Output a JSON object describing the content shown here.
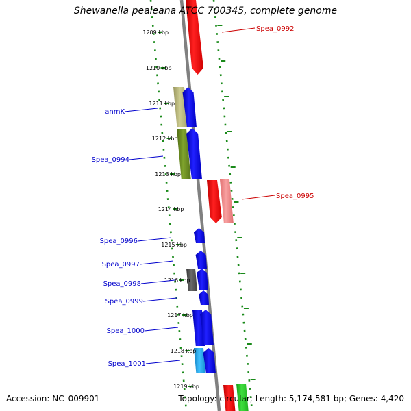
{
  "title": "Shewanella pealeana ATCC 700345, complete genome",
  "accession": "Accession: NC_009901",
  "topology": "Topology: circular; Length: 5,174,581 bp; Genes: 4,420",
  "colors": {
    "backbone": "#808080",
    "dotted_track": "#1a8a1a",
    "red_gene": "#ff0000",
    "red_label": "#cc0000",
    "pink_gene": "#f08080",
    "blue_gene": "#0000ff",
    "blue_label": "#0000cc",
    "khaki_gene": "#b5b37a",
    "olive_gene": "#6b8e23",
    "gray_gene": "#555555",
    "cyan_gene": "#1ea0e0",
    "green_gene": "#22cc22"
  },
  "scale": {
    "ticks": [
      {
        "label": "1209 kbp"
      },
      {
        "label": "1210 kbp"
      },
      {
        "label": "1211 kbp"
      },
      {
        "label": "1212 kbp"
      },
      {
        "label": "1213 kbp"
      },
      {
        "label": "1214 kbp"
      },
      {
        "label": "1215 kbp"
      },
      {
        "label": "1216 kbp"
      },
      {
        "label": "1217 kbp"
      },
      {
        "label": "1218 kbp"
      },
      {
        "label": "1219 kbp"
      }
    ]
  },
  "genes": {
    "right": [
      {
        "name": "Spea_0992",
        "color": "red_gene"
      },
      {
        "name": "Spea_0995",
        "color": "red_gene"
      }
    ],
    "left": [
      {
        "name": "anmK",
        "color": "khaki_gene"
      },
      {
        "name": "Spea_0994",
        "color": "olive_gene"
      },
      {
        "name": "Spea_0996",
        "color": "blue_gene"
      },
      {
        "name": "Spea_0997",
        "color": "blue_gene"
      },
      {
        "name": "Spea_0998",
        "color": "gray_gene"
      },
      {
        "name": "Spea_0999",
        "color": "blue_gene"
      },
      {
        "name": "Spea_1000",
        "color": "blue_gene"
      },
      {
        "name": "Spea_1001",
        "color": "cyan_gene"
      }
    ]
  }
}
